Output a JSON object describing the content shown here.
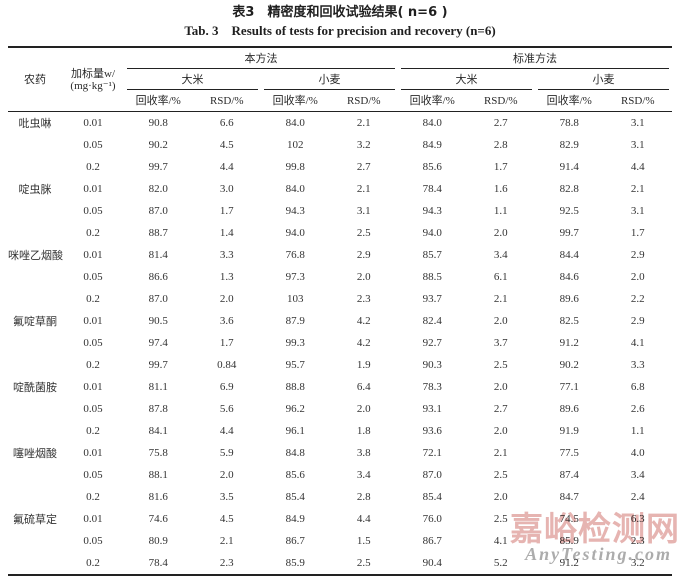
{
  "page": {
    "title_cn": "表3　精密度和回收试验结果( n=6 )",
    "title_en": "Tab. 3　Results of tests for precision and recovery (n=6)"
  },
  "table": {
    "headers": {
      "pesticide": "农药",
      "spike_line1": "加标量w/",
      "spike_line2": "(mg·kg⁻¹)",
      "method_this": "本方法",
      "method_standard": "标准方法",
      "rice": "大米",
      "wheat": "小麦",
      "recovery": "回收率/%",
      "rsd": "RSD/%"
    },
    "rows": [
      {
        "pesticide": "吡虫啉",
        "spike": "0.01",
        "values": [
          "90.8",
          "6.6",
          "84.0",
          "2.1",
          "84.0",
          "2.7",
          "78.8",
          "3.1"
        ]
      },
      {
        "pesticide": "",
        "spike": "0.05",
        "values": [
          "90.2",
          "4.5",
          "102",
          "3.2",
          "84.9",
          "2.8",
          "82.9",
          "3.1"
        ]
      },
      {
        "pesticide": "",
        "spike": "0.2",
        "values": [
          "99.7",
          "4.4",
          "99.8",
          "2.7",
          "85.6",
          "1.7",
          "91.4",
          "4.4"
        ]
      },
      {
        "pesticide": "啶虫脒",
        "spike": "0.01",
        "values": [
          "82.0",
          "3.0",
          "84.0",
          "2.1",
          "78.4",
          "1.6",
          "82.8",
          "2.1"
        ]
      },
      {
        "pesticide": "",
        "spike": "0.05",
        "values": [
          "87.0",
          "1.7",
          "94.3",
          "3.1",
          "94.3",
          "1.1",
          "92.5",
          "3.1"
        ]
      },
      {
        "pesticide": "",
        "spike": "0.2",
        "values": [
          "88.7",
          "1.4",
          "94.0",
          "2.5",
          "94.0",
          "2.0",
          "99.7",
          "1.7"
        ]
      },
      {
        "pesticide": "咪唑乙烟酸",
        "spike": "0.01",
        "values": [
          "81.4",
          "3.3",
          "76.8",
          "2.9",
          "85.7",
          "3.4",
          "84.4",
          "2.9"
        ]
      },
      {
        "pesticide": "",
        "spike": "0.05",
        "values": [
          "86.6",
          "1.3",
          "97.3",
          "2.0",
          "88.5",
          "6.1",
          "84.6",
          "2.0"
        ]
      },
      {
        "pesticide": "",
        "spike": "0.2",
        "values": [
          "87.0",
          "2.0",
          "103",
          "2.3",
          "93.7",
          "2.1",
          "89.6",
          "2.2"
        ]
      },
      {
        "pesticide": "氟啶草酮",
        "spike": "0.01",
        "values": [
          "90.5",
          "3.6",
          "87.9",
          "4.2",
          "82.4",
          "2.0",
          "82.5",
          "2.9"
        ]
      },
      {
        "pesticide": "",
        "spike": "0.05",
        "values": [
          "97.4",
          "1.7",
          "99.3",
          "4.2",
          "92.7",
          "3.7",
          "91.2",
          "4.1"
        ]
      },
      {
        "pesticide": "",
        "spike": "0.2",
        "values": [
          "99.7",
          "0.84",
          "95.7",
          "1.9",
          "90.3",
          "2.5",
          "90.2",
          "3.3"
        ]
      },
      {
        "pesticide": "啶酰菌胺",
        "spike": "0.01",
        "values": [
          "81.1",
          "6.9",
          "88.8",
          "6.4",
          "78.3",
          "2.0",
          "77.1",
          "6.8"
        ]
      },
      {
        "pesticide": "",
        "spike": "0.05",
        "values": [
          "87.8",
          "5.6",
          "96.2",
          "2.0",
          "93.1",
          "2.7",
          "89.6",
          "2.6"
        ]
      },
      {
        "pesticide": "",
        "spike": "0.2",
        "values": [
          "84.1",
          "4.4",
          "96.1",
          "1.8",
          "93.6",
          "2.0",
          "91.9",
          "1.1"
        ]
      },
      {
        "pesticide": "噻唑烟酸",
        "spike": "0.01",
        "values": [
          "75.8",
          "5.9",
          "84.8",
          "3.8",
          "72.1",
          "2.1",
          "77.5",
          "4.0"
        ]
      },
      {
        "pesticide": "",
        "spike": "0.05",
        "values": [
          "88.1",
          "2.0",
          "85.6",
          "3.4",
          "87.0",
          "2.5",
          "87.4",
          "3.4"
        ]
      },
      {
        "pesticide": "",
        "spike": "0.2",
        "values": [
          "81.6",
          "3.5",
          "85.4",
          "2.8",
          "85.4",
          "2.0",
          "84.7",
          "2.4"
        ]
      },
      {
        "pesticide": "氟硫草定",
        "spike": "0.01",
        "values": [
          "74.6",
          "4.5",
          "84.9",
          "4.4",
          "76.0",
          "2.5",
          "74.5",
          "6.3"
        ]
      },
      {
        "pesticide": "",
        "spike": "0.05",
        "values": [
          "80.9",
          "2.1",
          "86.7",
          "1.5",
          "86.7",
          "4.1",
          "85.9",
          "2.3"
        ]
      },
      {
        "pesticide": "",
        "spike": "0.2",
        "values": [
          "78.4",
          "2.3",
          "85.9",
          "2.5",
          "90.4",
          "5.2",
          "91.2",
          "3.2"
        ]
      }
    ]
  },
  "watermark": {
    "text_cn": "嘉峪检测网",
    "text_en": "AnyTesting.com",
    "color_cn": "#e2a7a4",
    "color_en": "#a3a3a3"
  }
}
